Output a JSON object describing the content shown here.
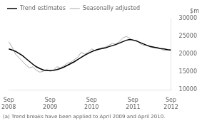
{
  "chart_data": {
    "type": "line",
    "x": [
      0,
      1,
      2,
      3,
      4,
      5,
      6,
      7,
      8,
      9,
      10,
      11,
      12,
      13,
      14,
      15,
      16,
      17,
      18,
      19,
      20,
      21,
      22,
      23,
      24,
      25,
      26,
      27,
      28,
      29,
      30,
      31,
      32,
      33,
      34,
      35,
      36,
      37,
      38,
      39,
      40,
      41,
      42,
      43,
      44,
      45,
      46,
      47
    ],
    "series": [
      {
        "name": "Trend estimates",
        "color": "#000000",
        "values": [
          21500,
          21200,
          20800,
          20200,
          19600,
          18800,
          18000,
          17200,
          16500,
          16000,
          15600,
          15400,
          15400,
          15500,
          15700,
          16000,
          16400,
          16900,
          17400,
          17900,
          18500,
          19100,
          19700,
          20200,
          20700,
          21100,
          21400,
          21600,
          21800,
          22100,
          22400,
          22700,
          23100,
          23500,
          23900,
          24100,
          24000,
          23700,
          23300,
          22900,
          22500,
          22200,
          22000,
          21800,
          21600,
          21500,
          21300,
          21200
        ]
      },
      {
        "name": "Seasonally adjusted",
        "color": "#aaaaaa",
        "values": [
          23500,
          22000,
          20000,
          19000,
          18000,
          17000,
          16200,
          16500,
          15500,
          15000,
          15200,
          15800,
          15200,
          15600,
          16500,
          16200,
          16800,
          17500,
          17800,
          18500,
          19200,
          20500,
          20000,
          20500,
          21500,
          21000,
          21500,
          21800,
          22000,
          22500,
          23000,
          22800,
          23500,
          24500,
          25000,
          24500,
          23800,
          24000,
          23000,
          22500,
          22500,
          22000,
          21800,
          22000,
          21500,
          21000,
          21200,
          21000
        ]
      }
    ],
    "xlim": [
      0,
      47
    ],
    "xticks": [
      {
        "value": 0,
        "label": "Sep\n2008"
      },
      {
        "value": 12,
        "label": "Sep\n2009"
      },
      {
        "value": 24,
        "label": "Sep\n2010"
      },
      {
        "value": 36,
        "label": "Sep\n2011"
      },
      {
        "value": 47,
        "label": "Sep\n2012"
      }
    ],
    "ylim": [
      10000,
      30000
    ],
    "yticks": [
      10000,
      15000,
      20000,
      25000,
      30000
    ],
    "ylabel": "$m",
    "footnote": "(a) Trend breaks have been applied to April 2009 and April 2010.",
    "legend": "upper left",
    "grid": false
  }
}
